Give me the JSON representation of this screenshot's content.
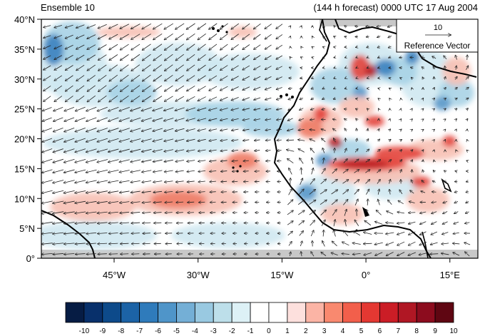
{
  "header": {
    "left_title": "Ensemble 10",
    "right_title": "(144 h forecast) 0000 UTC 17 Aug 2004"
  },
  "reference_vector": {
    "magnitude_label": "10",
    "caption": "Reference Vector"
  },
  "axes": {
    "lat_ticks": [
      {
        "value": 40,
        "label": "40°N"
      },
      {
        "value": 35,
        "label": "35°N"
      },
      {
        "value": 30,
        "label": "30°N"
      },
      {
        "value": 25,
        "label": "25°N"
      },
      {
        "value": 20,
        "label": "20°N"
      },
      {
        "value": 15,
        "label": "15°N"
      },
      {
        "value": 10,
        "label": "10°N"
      },
      {
        "value": 5,
        "label": "5°N"
      },
      {
        "value": 0,
        "label": "0°"
      }
    ],
    "lon_ticks": [
      {
        "value": -45,
        "label": "45°W"
      },
      {
        "value": -30,
        "label": "30°W"
      },
      {
        "value": -15,
        "label": "15°W"
      },
      {
        "value": 0,
        "label": "0°"
      },
      {
        "value": 15,
        "label": "15°E"
      }
    ],
    "lon_range": [
      -58,
      20
    ],
    "lat_range": [
      0,
      40
    ]
  },
  "colorbar": {
    "labels": [
      "-10",
      "-9",
      "-8",
      "-7",
      "-6",
      "-5",
      "-4",
      "-3",
      "-2",
      "-1",
      "0",
      "1",
      "2",
      "3",
      "4",
      "5",
      "6",
      "7",
      "8",
      "9",
      "10"
    ],
    "colors": [
      "#061c44",
      "#08306b",
      "#0d4a8a",
      "#1c63a6",
      "#2f7bbb",
      "#4f95c9",
      "#74afd6",
      "#99c9e1",
      "#bddfea",
      "#ddf1f6",
      "#ffffff",
      "#ffffff",
      "#fde0dd",
      "#fbb4a5",
      "#f9896f",
      "#f25f4b",
      "#e43832",
      "#cb1d26",
      "#b01724",
      "#8c0c1e",
      "#5f0612"
    ]
  },
  "chart_data": {
    "type": "map",
    "title_left": "Ensemble 10",
    "title_right": "(144 h forecast) 0000 UTC 17 Aug 2004",
    "projection": "cylindrical equidistant",
    "lon_range": [
      -58,
      20
    ],
    "lat_range": [
      0,
      40
    ],
    "fields": [
      "shaded scalar anomaly (-10 to 10)",
      "wind vectors"
    ],
    "reference_vector": 10
  }
}
